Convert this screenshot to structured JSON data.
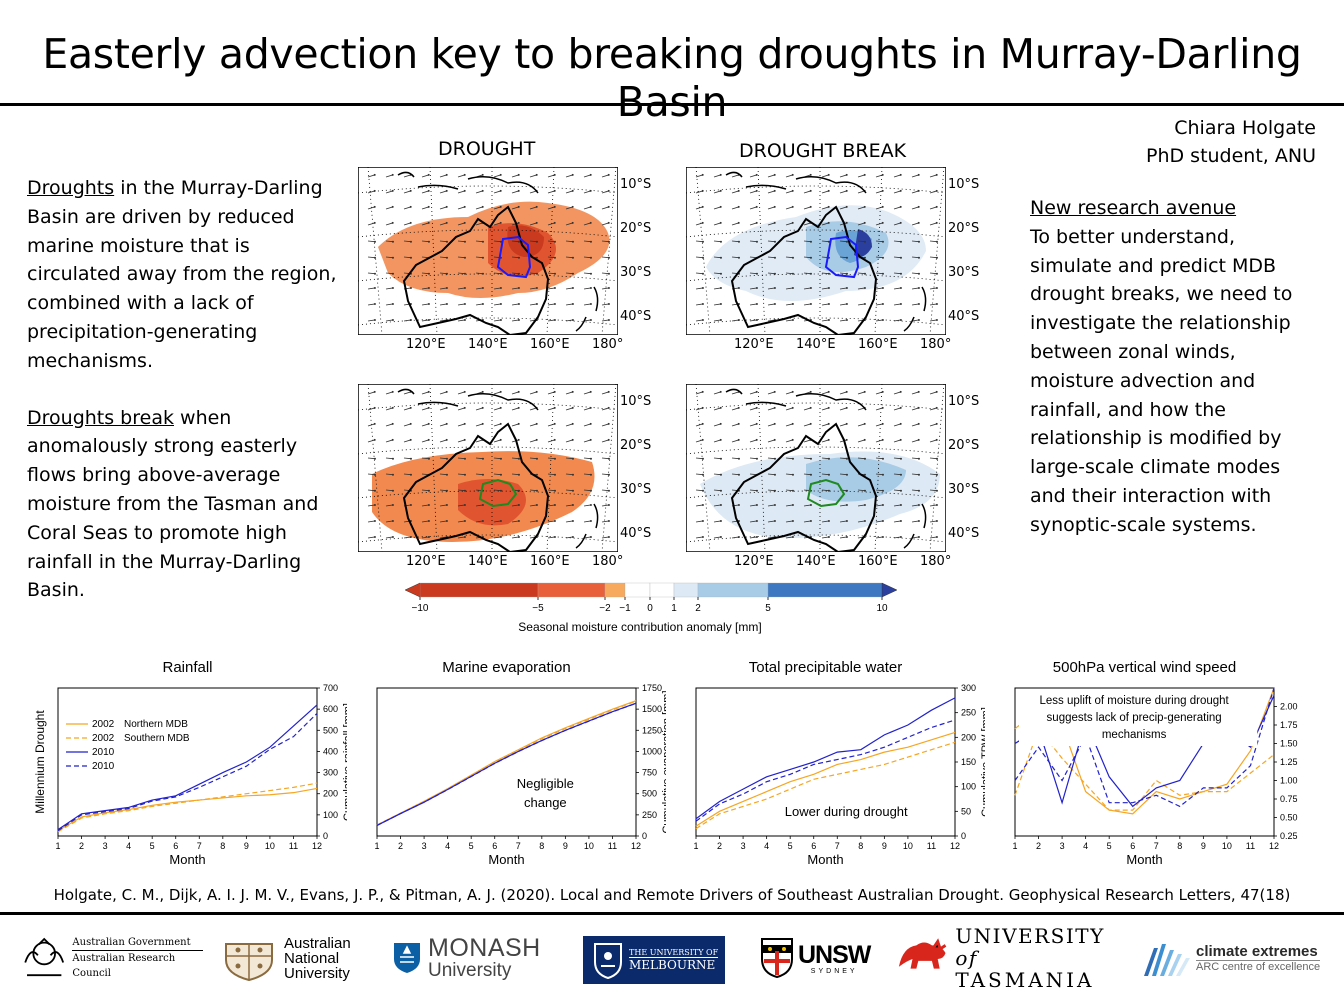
{
  "title": "Easterly advection key to breaking droughts in Murray-Darling Basin",
  "author": {
    "name": "Chiara Holgate",
    "role": "PhD student, ANU"
  },
  "left_text": {
    "p1_link": "Droughts",
    "p1_rest": " in the Murray-Darling Basin are driven by reduced marine moisture that is circulated away from the region, combined with a lack of precipitation-generating mechanisms.",
    "p2_link": "Droughts break",
    "p2_rest": " when anomalously strong easterly flows bring above-average moisture from the Tasman and Coral Seas to promote high rainfall in the Murray-Darling Basin."
  },
  "right_text": {
    "heading": "New research avenue",
    "body": "To better understand, simulate and predict MDB drought breaks, we need to investigate the relationship between zonal winds, moisture advection and rainfall, and how the relationship is modified by large-scale climate modes and their interaction with synoptic-scale systems."
  },
  "maps": {
    "col_labels": [
      "DROUGHT",
      "DROUGHT BREAK"
    ],
    "lat_labels": [
      "10°S",
      "20°S",
      "30°S",
      "40°S"
    ],
    "lon_labels": [
      "120°E",
      "140°E",
      "160°E",
      "180°"
    ]
  },
  "colorbar": {
    "ticks": [
      "−10",
      "−5",
      "−2",
      "−1",
      "0",
      "1",
      "2",
      "5",
      "10"
    ],
    "label": "Seasonal moisture contribution  anomaly [mm]",
    "colors": [
      "#c93a1f",
      "#e8603a",
      "#f2894f",
      "#f7a95e",
      "#ffffff",
      "#ffffff",
      "#dde9f4",
      "#a8cbe6",
      "#6aa3d5",
      "#3e78c0",
      "#2a3f9e"
    ]
  },
  "chart_data": [
    {
      "type": "line",
      "title": "Rainfall",
      "xlabel": "Month",
      "ylabel": "Cumulative rainfall [mm]",
      "ylabel_left": "Millennium Drought",
      "x": [
        1,
        2,
        3,
        4,
        5,
        6,
        7,
        8,
        9,
        10,
        11,
        12
      ],
      "xlim": [
        1,
        12
      ],
      "ylim": [
        0,
        700
      ],
      "yticks": [
        0,
        100,
        200,
        300,
        400,
        500,
        600,
        700
      ],
      "legend": [
        "2002",
        "2002",
        "2010",
        "2010"
      ],
      "legend_region": [
        "Northern MDB",
        "Southern MDB"
      ],
      "series": [
        {
          "name": "2002",
          "region": "Northern MDB",
          "style": "solid",
          "color": "#f5a623",
          "values": [
            25,
            90,
            110,
            125,
            145,
            160,
            170,
            180,
            190,
            195,
            205,
            225
          ]
        },
        {
          "name": "2002",
          "region": "Southern MDB",
          "style": "dashed",
          "color": "#f5a623",
          "values": [
            20,
            85,
            105,
            120,
            140,
            155,
            170,
            185,
            200,
            215,
            230,
            250
          ]
        },
        {
          "name": "2010",
          "region": "Northern MDB",
          "style": "solid",
          "color": "#2222cc",
          "values": [
            30,
            105,
            120,
            135,
            170,
            190,
            245,
            300,
            350,
            420,
            520,
            620
          ]
        },
        {
          "name": "2010",
          "region": "Southern MDB",
          "style": "dashed",
          "color": "#2222cc",
          "values": [
            25,
            100,
            115,
            130,
            165,
            185,
            230,
            280,
            330,
            410,
            470,
            580
          ]
        }
      ]
    },
    {
      "type": "line",
      "title": "Marine evaporation",
      "xlabel": "Month",
      "ylabel": "Cumulative evaporation [mm]",
      "x": [
        1,
        2,
        3,
        4,
        5,
        6,
        7,
        8,
        9,
        10,
        11,
        12
      ],
      "xlim": [
        1,
        12
      ],
      "ylim": [
        0,
        1750
      ],
      "yticks": [
        0,
        250,
        500,
        750,
        1000,
        1250,
        1500,
        1750
      ],
      "annotation": "Negligible change",
      "series": [
        {
          "name": "2002",
          "region": "Northern MDB",
          "style": "solid",
          "color": "#f5a623",
          "values": [
            130,
            270,
            410,
            560,
            720,
            880,
            1020,
            1160,
            1280,
            1390,
            1500,
            1600
          ]
        },
        {
          "name": "2002",
          "region": "Southern MDB",
          "style": "dashed",
          "color": "#f5a623",
          "values": [
            130,
            270,
            410,
            555,
            715,
            870,
            1010,
            1150,
            1270,
            1380,
            1490,
            1595
          ]
        },
        {
          "name": "2010",
          "region": "Northern MDB",
          "style": "solid",
          "color": "#2222cc",
          "values": [
            125,
            265,
            400,
            550,
            705,
            860,
            1000,
            1130,
            1250,
            1360,
            1470,
            1570
          ]
        },
        {
          "name": "2010",
          "region": "Southern MDB",
          "style": "dashed",
          "color": "#2222cc",
          "values": [
            125,
            265,
            400,
            548,
            703,
            858,
            998,
            1128,
            1248,
            1358,
            1468,
            1568
          ]
        }
      ]
    },
    {
      "type": "line",
      "title": "Total precipitable water",
      "xlabel": "Month",
      "ylabel": "Cumulative TPW [mm]",
      "x": [
        1,
        2,
        3,
        4,
        5,
        6,
        7,
        8,
        9,
        10,
        11,
        12
      ],
      "xlim": [
        1,
        12
      ],
      "ylim": [
        0,
        300
      ],
      "yticks": [
        0,
        50,
        100,
        150,
        200,
        250,
        300
      ],
      "annotation": "Lower during drought",
      "series": [
        {
          "name": "2002",
          "region": "Northern MDB",
          "style": "solid",
          "color": "#f5a623",
          "values": [
            20,
            50,
            70,
            90,
            110,
            125,
            145,
            155,
            170,
            180,
            195,
            210
          ]
        },
        {
          "name": "2002",
          "region": "Southern MDB",
          "style": "dashed",
          "color": "#f5a623",
          "values": [
            15,
            45,
            60,
            75,
            95,
            115,
            125,
            135,
            145,
            160,
            175,
            190
          ]
        },
        {
          "name": "2010",
          "region": "Northern MDB",
          "style": "solid",
          "color": "#2222cc",
          "values": [
            35,
            70,
            95,
            120,
            135,
            150,
            170,
            175,
            205,
            225,
            255,
            280
          ]
        },
        {
          "name": "2010",
          "region": "Southern MDB",
          "style": "dashed",
          "color": "#2222cc",
          "values": [
            30,
            65,
            85,
            110,
            125,
            145,
            155,
            165,
            180,
            200,
            220,
            235
          ]
        }
      ]
    },
    {
      "type": "line",
      "title": "500hPa vertical wind speed",
      "xlabel": "Month",
      "ylabel": "Max vertical wind speed [m/s]",
      "x": [
        1,
        2,
        3,
        4,
        5,
        6,
        7,
        8,
        9,
        10,
        11,
        12
      ],
      "xlim": [
        1,
        12
      ],
      "ylim": [
        0.25,
        2.25
      ],
      "yticks": [
        0.25,
        0.5,
        0.75,
        1.0,
        1.25,
        1.5,
        1.75,
        2.0
      ],
      "annotation": "Less uplift of moisture during drought suggests lack of precip-generating mechanisms",
      "series": [
        {
          "name": "2002",
          "region": "Northern MDB",
          "style": "solid",
          "color": "#f5a623",
          "values": [
            1.7,
            1.95,
            1.75,
            0.85,
            0.6,
            0.55,
            0.85,
            0.75,
            0.85,
            0.95,
            1.4,
            2.3
          ]
        },
        {
          "name": "2002",
          "region": "Southern MDB",
          "style": "dashed",
          "color": "#f5a623",
          "values": [
            0.8,
            1.7,
            1.3,
            0.95,
            0.6,
            0.6,
            1.0,
            0.8,
            0.85,
            0.85,
            1.1,
            1.35
          ]
        },
        {
          "name": "2010",
          "region": "Northern MDB",
          "style": "solid",
          "color": "#2222cc",
          "values": [
            1.5,
            1.7,
            0.7,
            1.8,
            1.05,
            0.65,
            0.9,
            1.0,
            1.5,
            1.7,
            1.45,
            2.15
          ]
        },
        {
          "name": "2010",
          "region": "Southern MDB",
          "style": "dashed",
          "color": "#2222cc",
          "values": [
            1.0,
            1.45,
            1.0,
            1.6,
            0.7,
            0.7,
            0.8,
            0.65,
            0.9,
            0.9,
            1.2,
            2.25
          ]
        }
      ]
    }
  ],
  "citation": "Holgate, C. M., Dijk, A. I. J. M. V., Evans, J. P., & Pitman, A. J. (2020). Local and Remote Drivers of Southeast Australian Drought. Geophysical Research Letters, 47(18)",
  "logos": {
    "aus_gov_line1": "Australian Government",
    "aus_gov_line2": "Australian Research Council",
    "anu": [
      "Australian",
      "National",
      "University"
    ],
    "monash_1": "MONASH",
    "monash_2": "University",
    "melb_1": "THE UNIVERSITY OF",
    "melb_2": "MELBOURNE",
    "unsw": "UNSW",
    "unsw_sub": "SYDNEY",
    "utas_1": "UNIVERSITY",
    "utas_of": "of",
    "utas_2": "TASMANIA",
    "clex_1": "climate extremes",
    "clex_2": "ARC centre of excellence"
  }
}
